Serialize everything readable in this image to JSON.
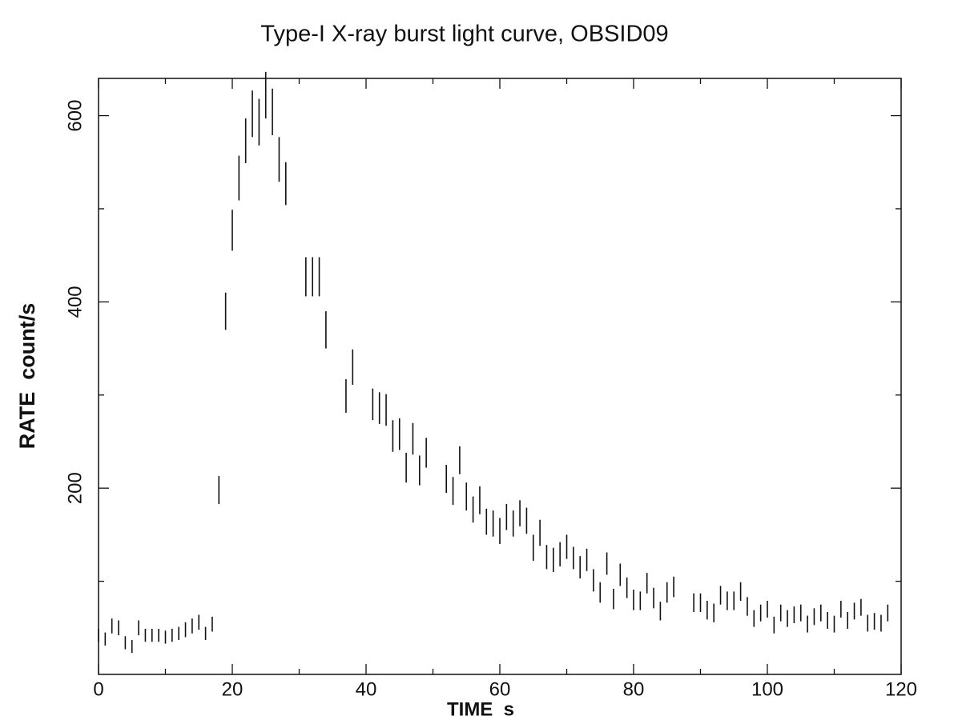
{
  "chart_data": {
    "type": "errorbar",
    "title": "Type-I X-ray burst light curve, OBSID09",
    "x_label": "TIME  s",
    "y_label": "RATE  count/s",
    "xlim": [
      0,
      120
    ],
    "xticks": [
      0,
      20,
      40,
      60,
      80,
      100,
      120
    ],
    "xminor": [
      10,
      30,
      50,
      70,
      90,
      110
    ],
    "ylim": [
      0,
      640
    ],
    "yticks": [
      200,
      400,
      600
    ],
    "yminor": [
      100,
      300,
      500
    ],
    "color": "#111111",
    "x": [
      0,
      1,
      2,
      3,
      4,
      5,
      6,
      7,
      8,
      9,
      10,
      11,
      12,
      13,
      14,
      15,
      16,
      17,
      18,
      19,
      20,
      21,
      22,
      23,
      24,
      25,
      26,
      27,
      28,
      31,
      32,
      33,
      34,
      37,
      38,
      41,
      42,
      43,
      44,
      45,
      46,
      47,
      48,
      49,
      52,
      53,
      54,
      55,
      56,
      57,
      58,
      59,
      60,
      61,
      62,
      63,
      64,
      65,
      66,
      67,
      68,
      69,
      70,
      71,
      72,
      73,
      74,
      75,
      76,
      77,
      78,
      79,
      80,
      81,
      82,
      83,
      84,
      85,
      86,
      89,
      90,
      91,
      92,
      93,
      94,
      95,
      96,
      97,
      98,
      99,
      100,
      101,
      102,
      103,
      104,
      105,
      106,
      107,
      108,
      109,
      110,
      111,
      112,
      113,
      114,
      115,
      116,
      117,
      118
    ],
    "values": [
      42,
      38,
      52,
      50,
      34,
      30,
      50,
      42,
      42,
      42,
      40,
      42,
      44,
      48,
      52,
      56,
      44,
      54,
      198,
      390,
      477,
      533,
      573,
      602,
      593,
      622,
      604,
      553,
      527,
      427,
      427,
      427,
      370,
      299,
      330,
      290,
      286,
      284,
      256,
      258,
      222,
      253,
      219,
      238,
      210,
      197,
      230,
      191,
      177,
      187,
      164,
      162,
      154,
      169,
      162,
      173,
      165,
      136,
      152,
      126,
      123,
      129,
      137,
      125,
      115,
      123,
      101,
      88,
      119,
      81,
      107,
      93,
      80,
      79,
      98,
      82,
      68,
      88,
      94,
      77,
      77,
      69,
      66,
      85,
      79,
      79,
      89,
      73,
      60,
      66,
      70,
      53,
      66,
      60,
      64,
      66,
      54,
      62,
      66,
      58,
      54,
      70,
      58,
      68,
      72,
      55,
      57,
      55,
      66
    ],
    "errors": [
      7,
      7,
      8,
      8,
      7,
      7,
      8,
      7,
      7,
      7,
      7,
      7,
      7,
      8,
      8,
      8,
      7,
      8,
      15,
      20,
      22,
      24,
      24,
      25,
      25,
      25,
      25,
      24,
      23,
      21,
      21,
      21,
      20,
      18,
      19,
      17,
      17,
      17,
      17,
      17,
      16,
      17,
      16,
      16,
      15,
      15,
      15,
      15,
      14,
      15,
      14,
      14,
      14,
      14,
      14,
      14,
      14,
      14,
      14,
      13,
      13,
      13,
      13,
      12,
      12,
      12,
      12,
      11,
      12,
      11,
      12,
      11,
      11,
      10,
      11,
      11,
      10,
      11,
      11,
      10,
      10,
      10,
      10,
      10,
      10,
      10,
      10,
      10,
      9,
      9,
      9,
      9,
      9,
      9,
      9,
      9,
      9,
      9,
      9,
      9,
      9,
      9,
      9,
      9,
      9,
      9,
      9,
      9,
      9
    ]
  }
}
